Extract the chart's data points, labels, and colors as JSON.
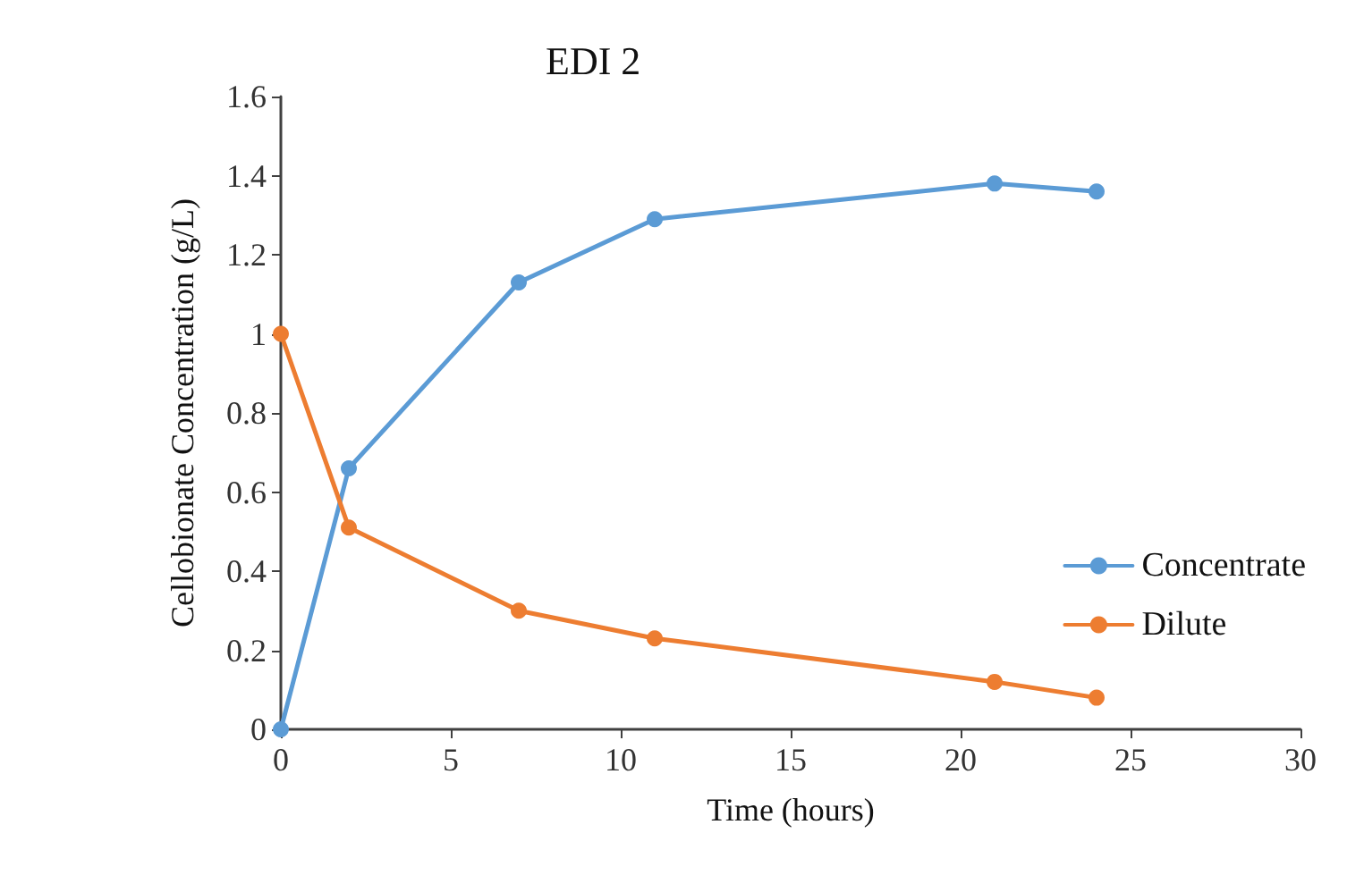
{
  "chart_data": {
    "type": "line",
    "title": "EDI 2",
    "xlabel": "Time (hours)",
    "ylabel": "Cellobionate Concentration (g/L)",
    "x": [
      0,
      2,
      7,
      11,
      21,
      24
    ],
    "series": [
      {
        "name": "Concentrate",
        "color": "#5b9bd5",
        "values": [
          0,
          0.66,
          1.13,
          1.29,
          1.38,
          1.36
        ]
      },
      {
        "name": "Dilute",
        "color": "#ed7d31",
        "values": [
          1.0,
          0.51,
          0.3,
          0.23,
          0.12,
          0.08
        ]
      }
    ],
    "xlim": [
      0,
      30
    ],
    "xticks": [
      0,
      5,
      10,
      15,
      20,
      25,
      30
    ],
    "ylim": [
      0,
      1.6
    ],
    "yticks": [
      0,
      0.2,
      0.4,
      0.6,
      0.8,
      1,
      1.2,
      1.4,
      1.6
    ],
    "grid": false,
    "legend": "bottom right",
    "marker": "circle",
    "line_style": "solid"
  }
}
